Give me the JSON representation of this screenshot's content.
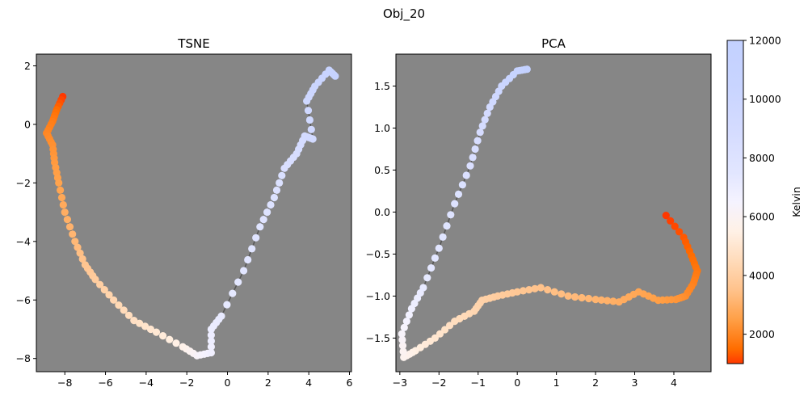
{
  "figure": {
    "suptitle": "Obj_20"
  },
  "chart_data": [
    {
      "type": "scatter",
      "title": "TSNE",
      "xlabel": "",
      "ylabel": "",
      "xlim": [
        -9.4,
        6.1
      ],
      "ylim": [
        -8.45,
        2.4
      ],
      "xticks": [
        -8,
        -6,
        -4,
        -2,
        0,
        2,
        4,
        6
      ],
      "yticks": [
        -8,
        -6,
        -4,
        -2,
        0,
        2
      ],
      "xtick_labels": [
        "−8",
        "−6",
        "−4",
        "−2",
        "0",
        "2",
        "4",
        "6"
      ],
      "ytick_labels": [
        "−8",
        "−6",
        "−4",
        "−2",
        "0",
        "2"
      ],
      "background": "#868686",
      "connected_line": true,
      "anchors": [
        [
          -8.1,
          0.95,
          1000
        ],
        [
          -8.4,
          0.5,
          1500
        ],
        [
          -8.6,
          0.1,
          1800
        ],
        [
          -8.9,
          -0.3,
          2000
        ],
        [
          -8.6,
          -0.7,
          2200
        ],
        [
          -8.5,
          -1.3,
          2400
        ],
        [
          -8.3,
          -2.0,
          2600
        ],
        [
          -8.0,
          -3.0,
          2900
        ],
        [
          -7.5,
          -4.0,
          3200
        ],
        [
          -7.0,
          -4.8,
          3600
        ],
        [
          -6.5,
          -5.3,
          3900
        ],
        [
          -5.6,
          -6.0,
          4300
        ],
        [
          -4.6,
          -6.7,
          4700
        ],
        [
          -3.5,
          -7.1,
          5100
        ],
        [
          -2.2,
          -7.6,
          5600
        ],
        [
          -1.5,
          -7.9,
          6200
        ],
        [
          -0.8,
          -7.8,
          6700
        ],
        [
          -0.8,
          -7.0,
          7000
        ],
        [
          -0.3,
          -6.55,
          7200
        ],
        [
          0.8,
          -5.0,
          7500
        ],
        [
          1.6,
          -3.5,
          7800
        ],
        [
          2.3,
          -2.5,
          8100
        ],
        [
          2.8,
          -1.5,
          8400
        ],
        [
          3.4,
          -1.0,
          8700
        ],
        [
          3.8,
          -0.4,
          9000
        ],
        [
          4.2,
          -0.5,
          9300
        ],
        [
          3.9,
          0.8,
          9700
        ],
        [
          4.3,
          1.3,
          10100
        ],
        [
          5.0,
          1.85,
          10500
        ],
        [
          5.3,
          1.65,
          11000
        ]
      ]
    },
    {
      "type": "scatter",
      "title": "PCA",
      "xlabel": "",
      "ylabel": "",
      "xlim": [
        -3.1,
        4.95
      ],
      "ylim": [
        -1.9,
        1.88
      ],
      "xticks": [
        -3,
        -2,
        -1,
        0,
        1,
        2,
        3,
        4
      ],
      "yticks": [
        -1.5,
        -1.0,
        -0.5,
        0.0,
        0.5,
        1.0,
        1.5
      ],
      "xtick_labels": [
        "−3",
        "−2",
        "−1",
        "0",
        "1",
        "2",
        "3",
        "4"
      ],
      "ytick_labels": [
        "−1.5",
        "−1.0",
        "−0.5",
        "0.0",
        "0.5",
        "1.0",
        "1.5"
      ],
      "background": "#868686",
      "connected_line": true,
      "anchors": [
        [
          3.8,
          -0.04,
          1000
        ],
        [
          4.25,
          -0.3,
          1300
        ],
        [
          4.45,
          -0.52,
          1500
        ],
        [
          4.6,
          -0.7,
          1700
        ],
        [
          4.5,
          -0.85,
          1900
        ],
        [
          4.3,
          -1.0,
          2100
        ],
        [
          4.05,
          -1.04,
          2300
        ],
        [
          3.6,
          -1.05,
          2500
        ],
        [
          3.1,
          -0.95,
          2700
        ],
        [
          2.6,
          -1.07,
          2900
        ],
        [
          2.0,
          -1.04,
          3100
        ],
        [
          1.3,
          -1.0,
          3300
        ],
        [
          0.6,
          -0.9,
          3500
        ],
        [
          0.0,
          -0.95,
          3700
        ],
        [
          -0.5,
          -1.0,
          3900
        ],
        [
          -0.9,
          -1.05,
          4100
        ],
        [
          -1.1,
          -1.18,
          4300
        ],
        [
          -1.6,
          -1.3,
          4600
        ],
        [
          -2.1,
          -1.5,
          5000
        ],
        [
          -2.6,
          -1.65,
          5400
        ],
        [
          -2.9,
          -1.73,
          5800
        ],
        [
          -2.95,
          -1.45,
          6300
        ],
        [
          -2.7,
          -1.15,
          6800
        ],
        [
          -2.4,
          -0.9,
          7200
        ],
        [
          -2.0,
          -0.43,
          7600
        ],
        [
          -1.6,
          0.1,
          8000
        ],
        [
          -1.2,
          0.55,
          8400
        ],
        [
          -0.95,
          0.95,
          8800
        ],
        [
          -0.7,
          1.25,
          9300
        ],
        [
          -0.4,
          1.5,
          10000
        ],
        [
          0.0,
          1.68,
          11000
        ],
        [
          0.25,
          1.7,
          12000
        ]
      ]
    }
  ],
  "colorbar": {
    "label": "Kelvin",
    "range": [
      1000,
      12000
    ],
    "ticks": [
      2000,
      4000,
      6000,
      8000,
      10000,
      12000
    ],
    "tick_labels": [
      "2000",
      "4000",
      "6000",
      "8000",
      "10000",
      "12000"
    ],
    "stops": [
      [
        1000,
        "#ff3800"
      ],
      [
        1500,
        "#ff6d00"
      ],
      [
        2500,
        "#ff9f46"
      ],
      [
        3500,
        "#ffc28b"
      ],
      [
        4500,
        "#ffdbba"
      ],
      [
        5500,
        "#fff1e6"
      ],
      [
        6500,
        "#f5f3ff"
      ],
      [
        7500,
        "#e2e6ff"
      ],
      [
        9000,
        "#d4dbff"
      ],
      [
        10500,
        "#c8d4ff"
      ],
      [
        12000,
        "#c3d1ff"
      ]
    ]
  }
}
